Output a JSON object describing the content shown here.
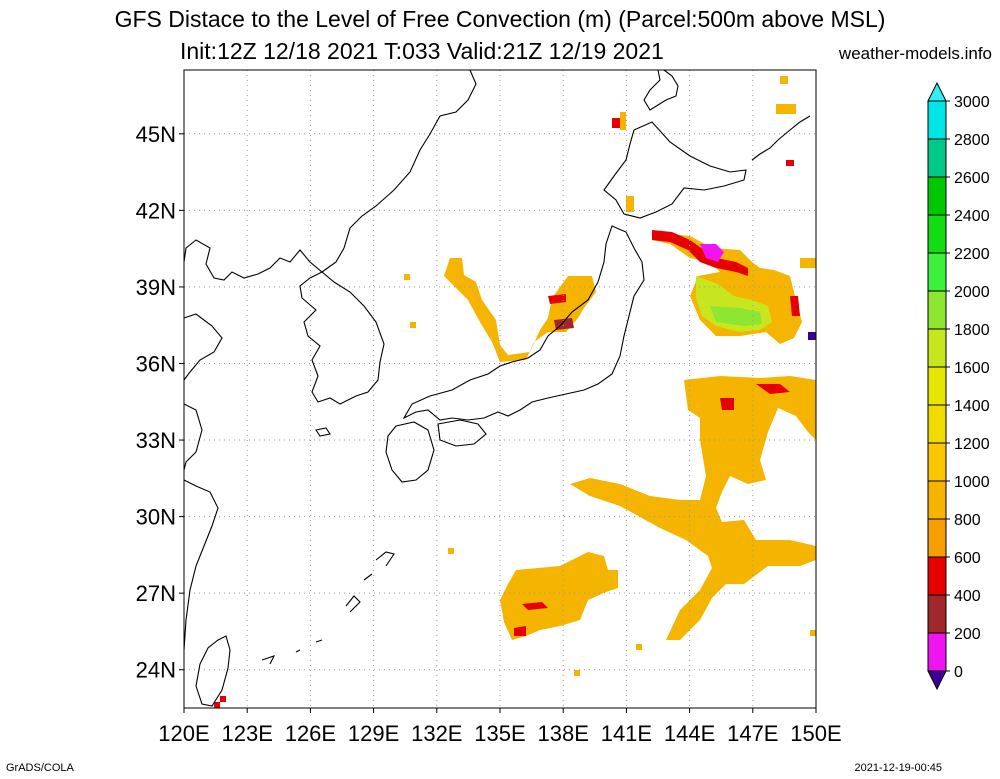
{
  "title": {
    "line1": "GFS Distace to the Level of Free Convection (m) (Parcel:500m above MSL)",
    "line2": "Init:12Z 12/18 2021 T:033 Valid:21Z 12/19 2021",
    "site": "weather-models.info"
  },
  "footer": {
    "left": "GrADS/COLA",
    "right": "2021-12-19-00:45"
  },
  "map": {
    "lon_range": [
      120,
      150
    ],
    "lat_range": [
      22.5,
      47.5
    ],
    "lat_labels": [
      "45N",
      "42N",
      "39N",
      "36N",
      "33N",
      "30N",
      "27N",
      "24N"
    ],
    "lat_values": [
      45,
      42,
      39,
      36,
      33,
      30,
      27,
      24
    ],
    "lon_labels": [
      "120E",
      "123E",
      "126E",
      "129E",
      "132E",
      "135E",
      "138E",
      "141E",
      "144E",
      "147E",
      "150E"
    ],
    "lon_values": [
      120,
      123,
      126,
      129,
      132,
      135,
      138,
      141,
      144,
      147,
      150
    ],
    "gridlines": true,
    "coastline_color": "#000000"
  },
  "colorbar": {
    "labels": [
      "3000",
      "2800",
      "2600",
      "2400",
      "2200",
      "2000",
      "1800",
      "1600",
      "1400",
      "1200",
      "1000",
      "800",
      "600",
      "400",
      "200",
      "0"
    ],
    "colors": [
      "#00e6e6",
      "#00c98a",
      "#00c800",
      "#12dc12",
      "#3cf03c",
      "#8ce632",
      "#c8e61e",
      "#e6e600",
      "#f0dc00",
      "#fac800",
      "#f5b400",
      "#f5a000",
      "#e60000",
      "#a0282d",
      "#f014f0",
      "#3c0096"
    ],
    "top_arrow_color": "#32f0f0",
    "bottom_arrow_color": "#3c0096"
  }
}
